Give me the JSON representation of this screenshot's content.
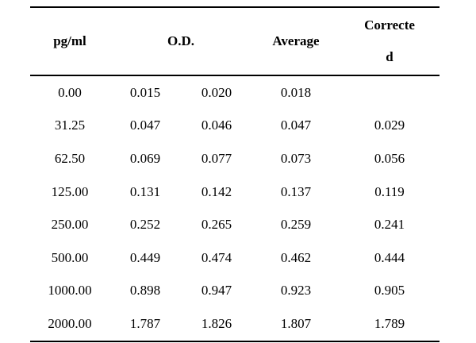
{
  "table": {
    "headers": {
      "concentration": "pg/ml",
      "od": "O.D.",
      "average": "Average",
      "corrected_line1": "Correcte",
      "corrected_line2": "d"
    },
    "rows": [
      {
        "conc": "0.00",
        "od1": "0.015",
        "od2": "0.020",
        "avg": "0.018",
        "corr": ""
      },
      {
        "conc": "31.25",
        "od1": "0.047",
        "od2": "0.046",
        "avg": "0.047",
        "corr": "0.029"
      },
      {
        "conc": "62.50",
        "od1": "0.069",
        "od2": "0.077",
        "avg": "0.073",
        "corr": "0.056"
      },
      {
        "conc": "125.00",
        "od1": "0.131",
        "od2": "0.142",
        "avg": "0.137",
        "corr": "0.119"
      },
      {
        "conc": "250.00",
        "od1": "0.252",
        "od2": "0.265",
        "avg": "0.259",
        "corr": "0.241"
      },
      {
        "conc": "500.00",
        "od1": "0.449",
        "od2": "0.474",
        "avg": "0.462",
        "corr": "0.444"
      },
      {
        "conc": "1000.00",
        "od1": "0.898",
        "od2": "0.947",
        "avg": "0.923",
        "corr": "0.905"
      },
      {
        "conc": "2000.00",
        "od1": "1.787",
        "od2": "1.826",
        "avg": "1.807",
        "corr": "1.789"
      }
    ]
  }
}
